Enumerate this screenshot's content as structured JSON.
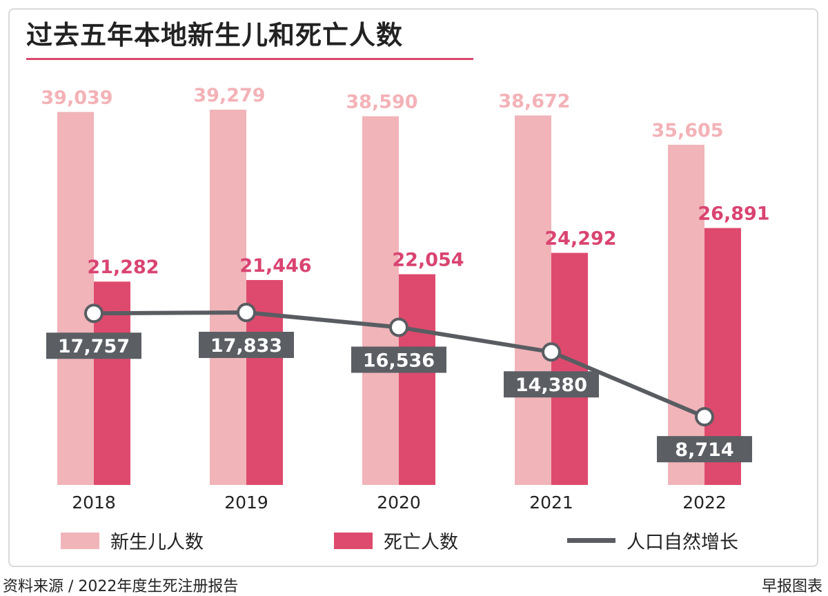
{
  "title": "过去五年本地新生儿和死亡人数",
  "colors": {
    "births": "#f0b4b9",
    "births_label": "#f3b2b7",
    "deaths": "#de4a6d",
    "deaths_label": "#d94470",
    "growth_line": "#595d62",
    "growth_box": "#5b5f64",
    "growth_text": "#ffffff",
    "accent_rule": "#d9476d"
  },
  "chart_data": {
    "type": "bar",
    "categories": [
      "2018",
      "2019",
      "2020",
      "2021",
      "2022"
    ],
    "series": [
      {
        "name": "新生儿人数",
        "values": [
          39039,
          39279,
          38590,
          38672,
          35605
        ],
        "labels": [
          "39,039",
          "39,279",
          "38,590",
          "38,672",
          "35,605"
        ]
      },
      {
        "name": "死亡人数",
        "values": [
          21282,
          21446,
          22054,
          24292,
          26891
        ],
        "labels": [
          "21,282",
          "21,446",
          "22,054",
          "24,292",
          "26,891"
        ]
      }
    ],
    "line_series": {
      "name": "人口自然增长",
      "values": [
        17757,
        17833,
        16536,
        14380,
        8714
      ],
      "labels": [
        "17,757",
        "17,833",
        "16,536",
        "14,380",
        "8,714"
      ]
    },
    "ylim": [
      0,
      40000
    ],
    "legend": [
      "新生儿人数",
      "死亡人数",
      "人口自然增长"
    ],
    "legend_position": "bottom"
  },
  "footer": {
    "source": "资料来源 / 2022年度生死注册报告",
    "credit": "早报图表"
  }
}
